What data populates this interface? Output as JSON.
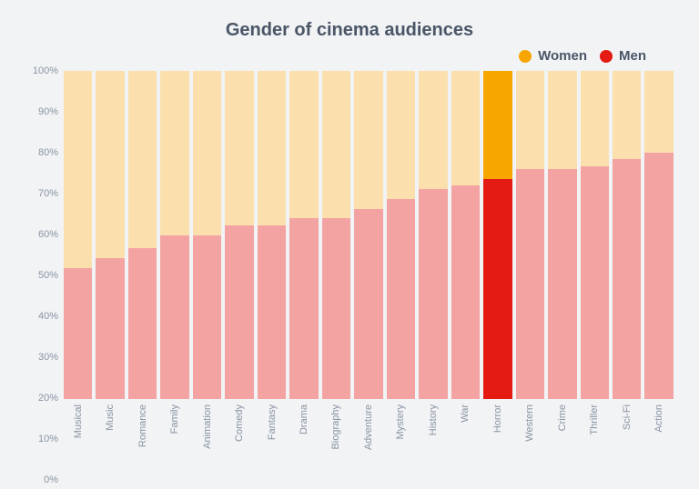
{
  "chart": {
    "type": "stacked-bar",
    "title": "Gender of cinema audiences",
    "title_fontsize": 20,
    "title_color": "#4a5666",
    "background_color": "#f1f3f5",
    "axis_label_color": "#8a94a3",
    "axis_label_fontsize": 11,
    "ylim": [
      0,
      100
    ],
    "ytick_step": 10,
    "y_suffix": "%",
    "legend": [
      {
        "label": "Women",
        "color": "#f7a600"
      },
      {
        "label": "Men",
        "color": "#e31b13"
      }
    ],
    "series_colors": {
      "men_default": "#f4a3a3",
      "women_default": "#fbe0ae",
      "men_highlight": "#e31b13",
      "women_highlight": "#f7a600"
    },
    "highlight_category": "Horror",
    "categories": [
      "Musical",
      "Music",
      "Romance",
      "Family",
      "Animation",
      "Comedy",
      "Fantasy",
      "Drama",
      "Biography",
      "Adventure",
      "Mystery",
      "History",
      "War",
      "Horror",
      "Western",
      "Crime",
      "Thriller",
      "Sci-Fi",
      "Action"
    ],
    "men_values": [
      40,
      43,
      46,
      50,
      50,
      53,
      53,
      55,
      55,
      58,
      61,
      64,
      65,
      67,
      70,
      70,
      71,
      73,
      75
    ],
    "women_values": [
      60,
      57,
      54,
      50,
      50,
      47,
      47,
      45,
      45,
      42,
      39,
      36,
      35,
      33,
      30,
      30,
      29,
      27,
      25
    ],
    "bar_total_height_pct": 103
  }
}
